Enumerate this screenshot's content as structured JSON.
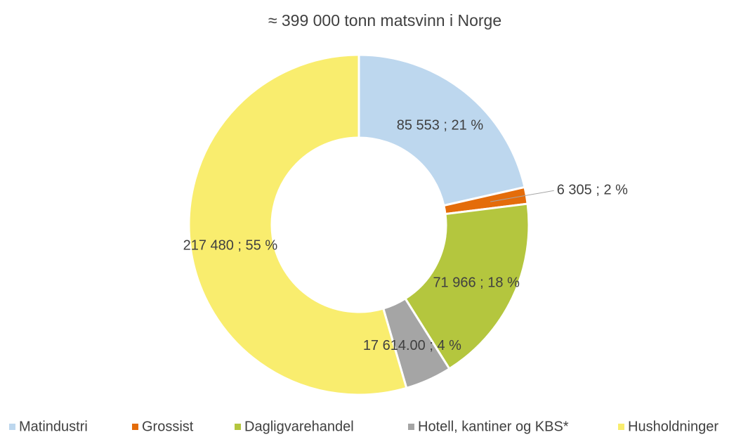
{
  "chart_data": {
    "type": "donut",
    "title": "≈ 399 000 tonn matsvinn i Norge",
    "categories": [
      "Matindustri",
      "Grossist",
      "Dagligvarehandel",
      "Hotell, kantiner og KBS*",
      "Husholdninger"
    ],
    "values": [
      85553,
      6305,
      71966,
      17614,
      217480
    ],
    "value_labels": [
      "85 553 ; 21 %",
      "6 305 ; 2 %",
      "71 966 ; 18 %",
      "17 614.00 ; 4 %",
      "217 480 ; 55 %"
    ],
    "colors": [
      "#bdd7ee",
      "#e46c0a",
      "#b4c63e",
      "#a5a5a5",
      "#f9ed6e"
    ],
    "legend": "bottom"
  }
}
